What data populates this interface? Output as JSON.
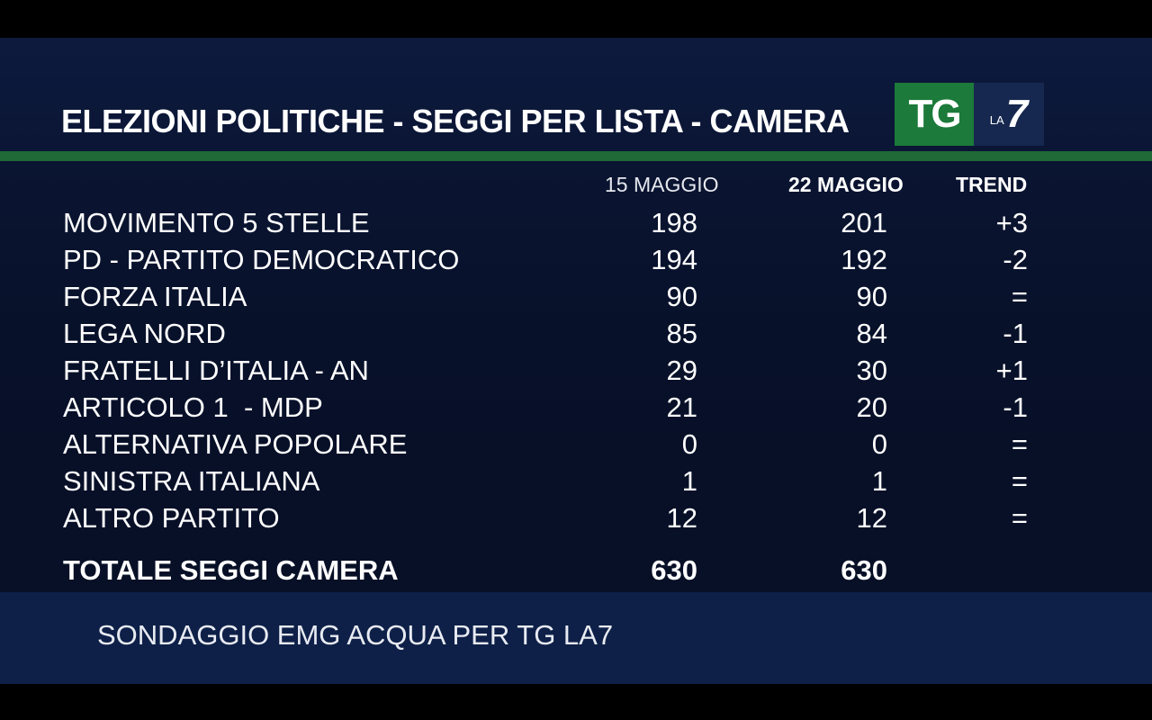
{
  "title": "ELEZIONI POLITICHE - SEGGI  PER  LISTA - CAMERA",
  "logo": {
    "tg": "TG",
    "la": "LA",
    "seven": "7"
  },
  "columns": {
    "date1": "15 MAGGIO",
    "date2": "22 MAGGIO",
    "trend": "TREND"
  },
  "rows": [
    {
      "party": "MOVIMENTO 5 STELLE",
      "v1": "198",
      "v2": "201",
      "trend": "+3"
    },
    {
      "party": "PD - PARTITO DEMOCRATICO",
      "v1": "194",
      "v2": "192",
      "trend": "-2"
    },
    {
      "party": "FORZA ITALIA",
      "v1": "90",
      "v2": "90",
      "trend": "="
    },
    {
      "party": "LEGA NORD",
      "v1": "85",
      "v2": "84",
      "trend": "-1"
    },
    {
      "party": "FRATELLI D’ITALIA - AN",
      "v1": "29",
      "v2": "30",
      "trend": "+1"
    },
    {
      "party": "ARTICOLO 1  - MDP",
      "v1": "21",
      "v2": "20",
      "trend": "-1"
    },
    {
      "party": "ALTERNATIVA POPOLARE",
      "v1": "0",
      "v2": "0",
      "trend": "="
    },
    {
      "party": "SINISTRA ITALIANA",
      "v1": "1",
      "v2": "1",
      "trend": "="
    },
    {
      "party": "ALTRO PARTITO",
      "v1": "12",
      "v2": "12",
      "trend": "="
    }
  ],
  "total": {
    "label": "TOTALE SEGGI CAMERA",
    "v1": "630",
    "v2": "630"
  },
  "source": "SONDAGGIO EMG ACQUA PER TG LA7",
  "colors": {
    "background": "#0a1532",
    "green_line": "#1f6a37",
    "logo_green": "#1c7a3a",
    "source_band": "#0e2048"
  }
}
